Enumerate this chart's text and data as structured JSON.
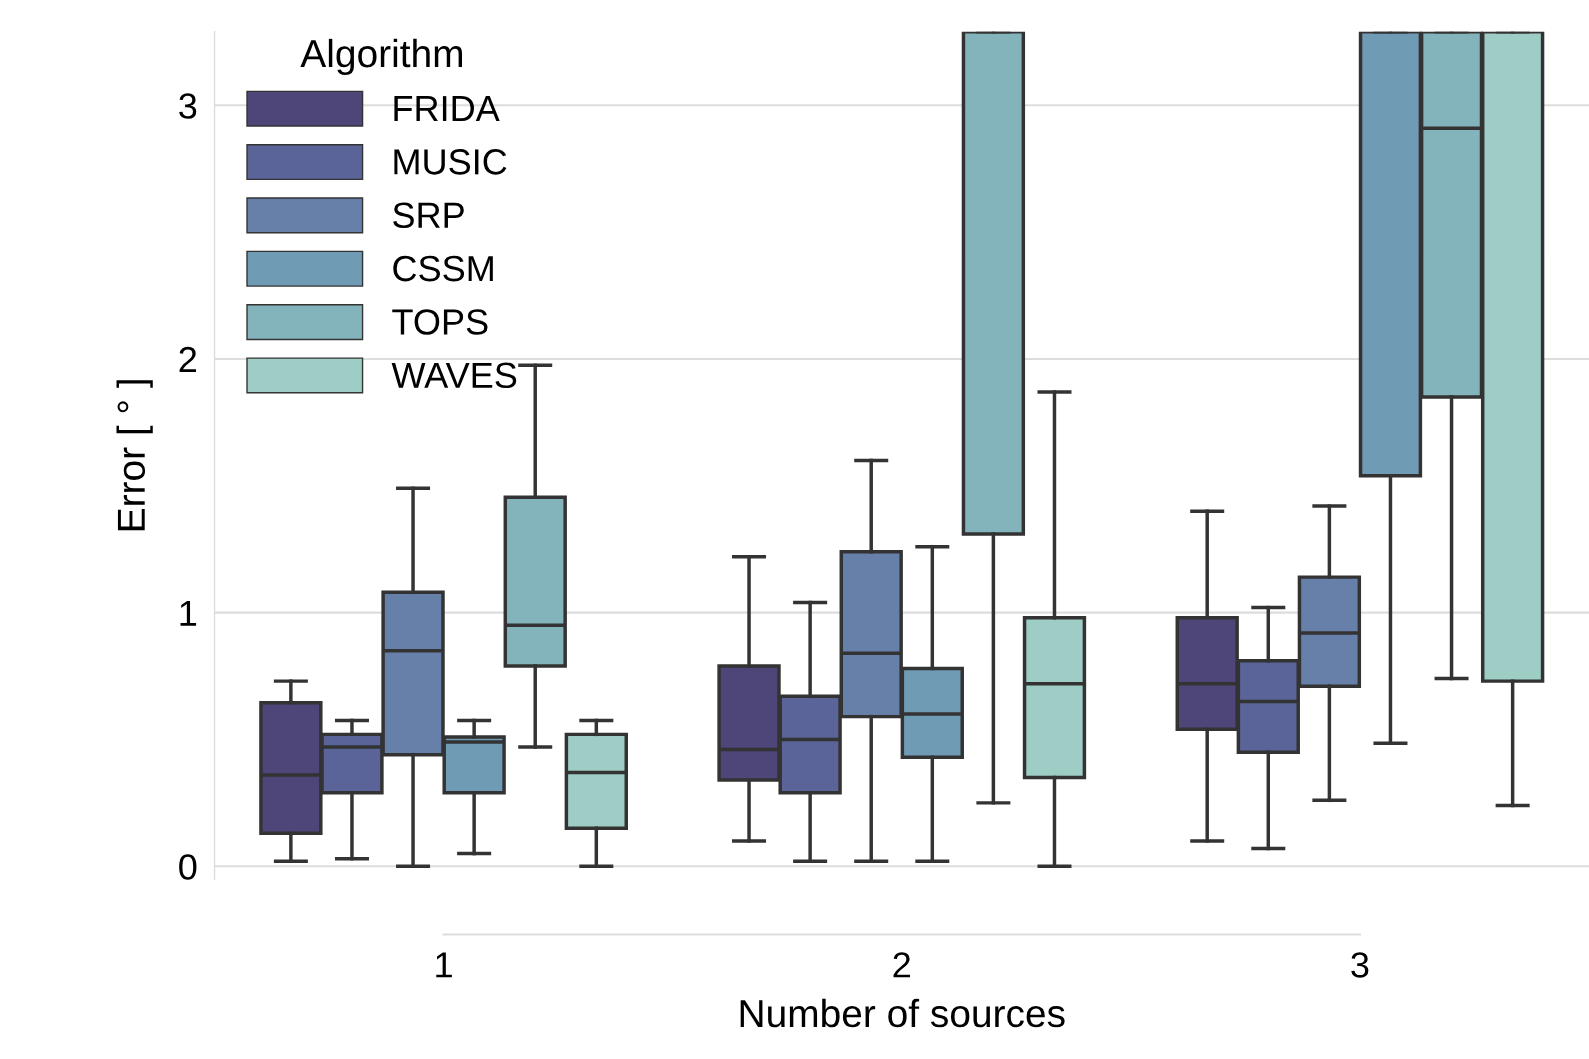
{
  "chart_data": {
    "type": "box",
    "xlabel": "Number of sources",
    "ylabel": "Error [ ° ]",
    "legend_title": "Algorithm",
    "legend": "top left",
    "grid": "y",
    "ylim": [
      -0.05,
      3.29
    ],
    "yticks": [
      0,
      1,
      2,
      3
    ],
    "categories": [
      "1",
      "2",
      "3"
    ],
    "series": [
      {
        "name": "FRIDA",
        "color": "#4e4679",
        "boxes": [
          {
            "low": 0.02,
            "q1": 0.13,
            "median": 0.36,
            "q3": 0.645,
            "high": 0.73
          },
          {
            "low": 0.1,
            "q1": 0.34,
            "median": 0.46,
            "q3": 0.79,
            "high": 1.22
          },
          {
            "low": 0.1,
            "q1": 0.54,
            "median": 0.72,
            "q3": 0.98,
            "high": 1.4
          }
        ]
      },
      {
        "name": "MUSIC",
        "color": "#5a6499",
        "boxes": [
          {
            "low": 0.03,
            "q1": 0.29,
            "median": 0.47,
            "q3": 0.52,
            "high": 0.575
          },
          {
            "low": 0.02,
            "q1": 0.29,
            "median": 0.5,
            "q3": 0.67,
            "high": 1.04
          },
          {
            "low": 0.07,
            "q1": 0.45,
            "median": 0.65,
            "q3": 0.81,
            "high": 1.02
          }
        ]
      },
      {
        "name": "SRP",
        "color": "#6680aa",
        "boxes": [
          {
            "low": 0.0,
            "q1": 0.44,
            "median": 0.85,
            "q3": 1.08,
            "high": 1.49
          },
          {
            "low": 0.02,
            "q1": 0.59,
            "median": 0.84,
            "q3": 1.24,
            "high": 1.6
          },
          {
            "low": 0.26,
            "q1": 0.71,
            "median": 0.92,
            "q3": 1.14,
            "high": 1.42
          }
        ]
      },
      {
        "name": "CSSM",
        "color": "#709bb4",
        "boxes": [
          {
            "low": 0.05,
            "q1": 0.29,
            "median": 0.49,
            "q3": 0.51,
            "high": 0.575
          },
          {
            "low": 0.02,
            "q1": 0.43,
            "median": 0.6,
            "q3": 0.78,
            "high": 1.26
          },
          {
            "low": 0.485,
            "q1": 1.54,
            "median": null,
            "q3": 3.29,
            "high": 3.29
          }
        ]
      },
      {
        "name": "TOPS",
        "color": "#84b4bb",
        "boxes": [
          {
            "low": 0.47,
            "q1": 0.79,
            "median": 0.95,
            "q3": 1.455,
            "high": 1.975
          },
          {
            "low": 0.25,
            "q1": 1.31,
            "median": null,
            "q3": 3.29,
            "high": 3.29
          },
          {
            "low": 0.74,
            "q1": 1.85,
            "median": 2.91,
            "q3": 3.29,
            "high": 3.29
          }
        ]
      },
      {
        "name": "WAVES",
        "color": "#9ecdc6",
        "boxes": [
          {
            "low": 0.0,
            "q1": 0.15,
            "median": 0.37,
            "q3": 0.52,
            "high": 0.575
          },
          {
            "low": 0.0,
            "q1": 0.35,
            "median": 0.72,
            "q3": 0.98,
            "high": 1.87
          },
          {
            "low": 0.24,
            "q1": 0.73,
            "median": null,
            "q3": 3.29,
            "high": 3.29
          }
        ]
      }
    ]
  }
}
